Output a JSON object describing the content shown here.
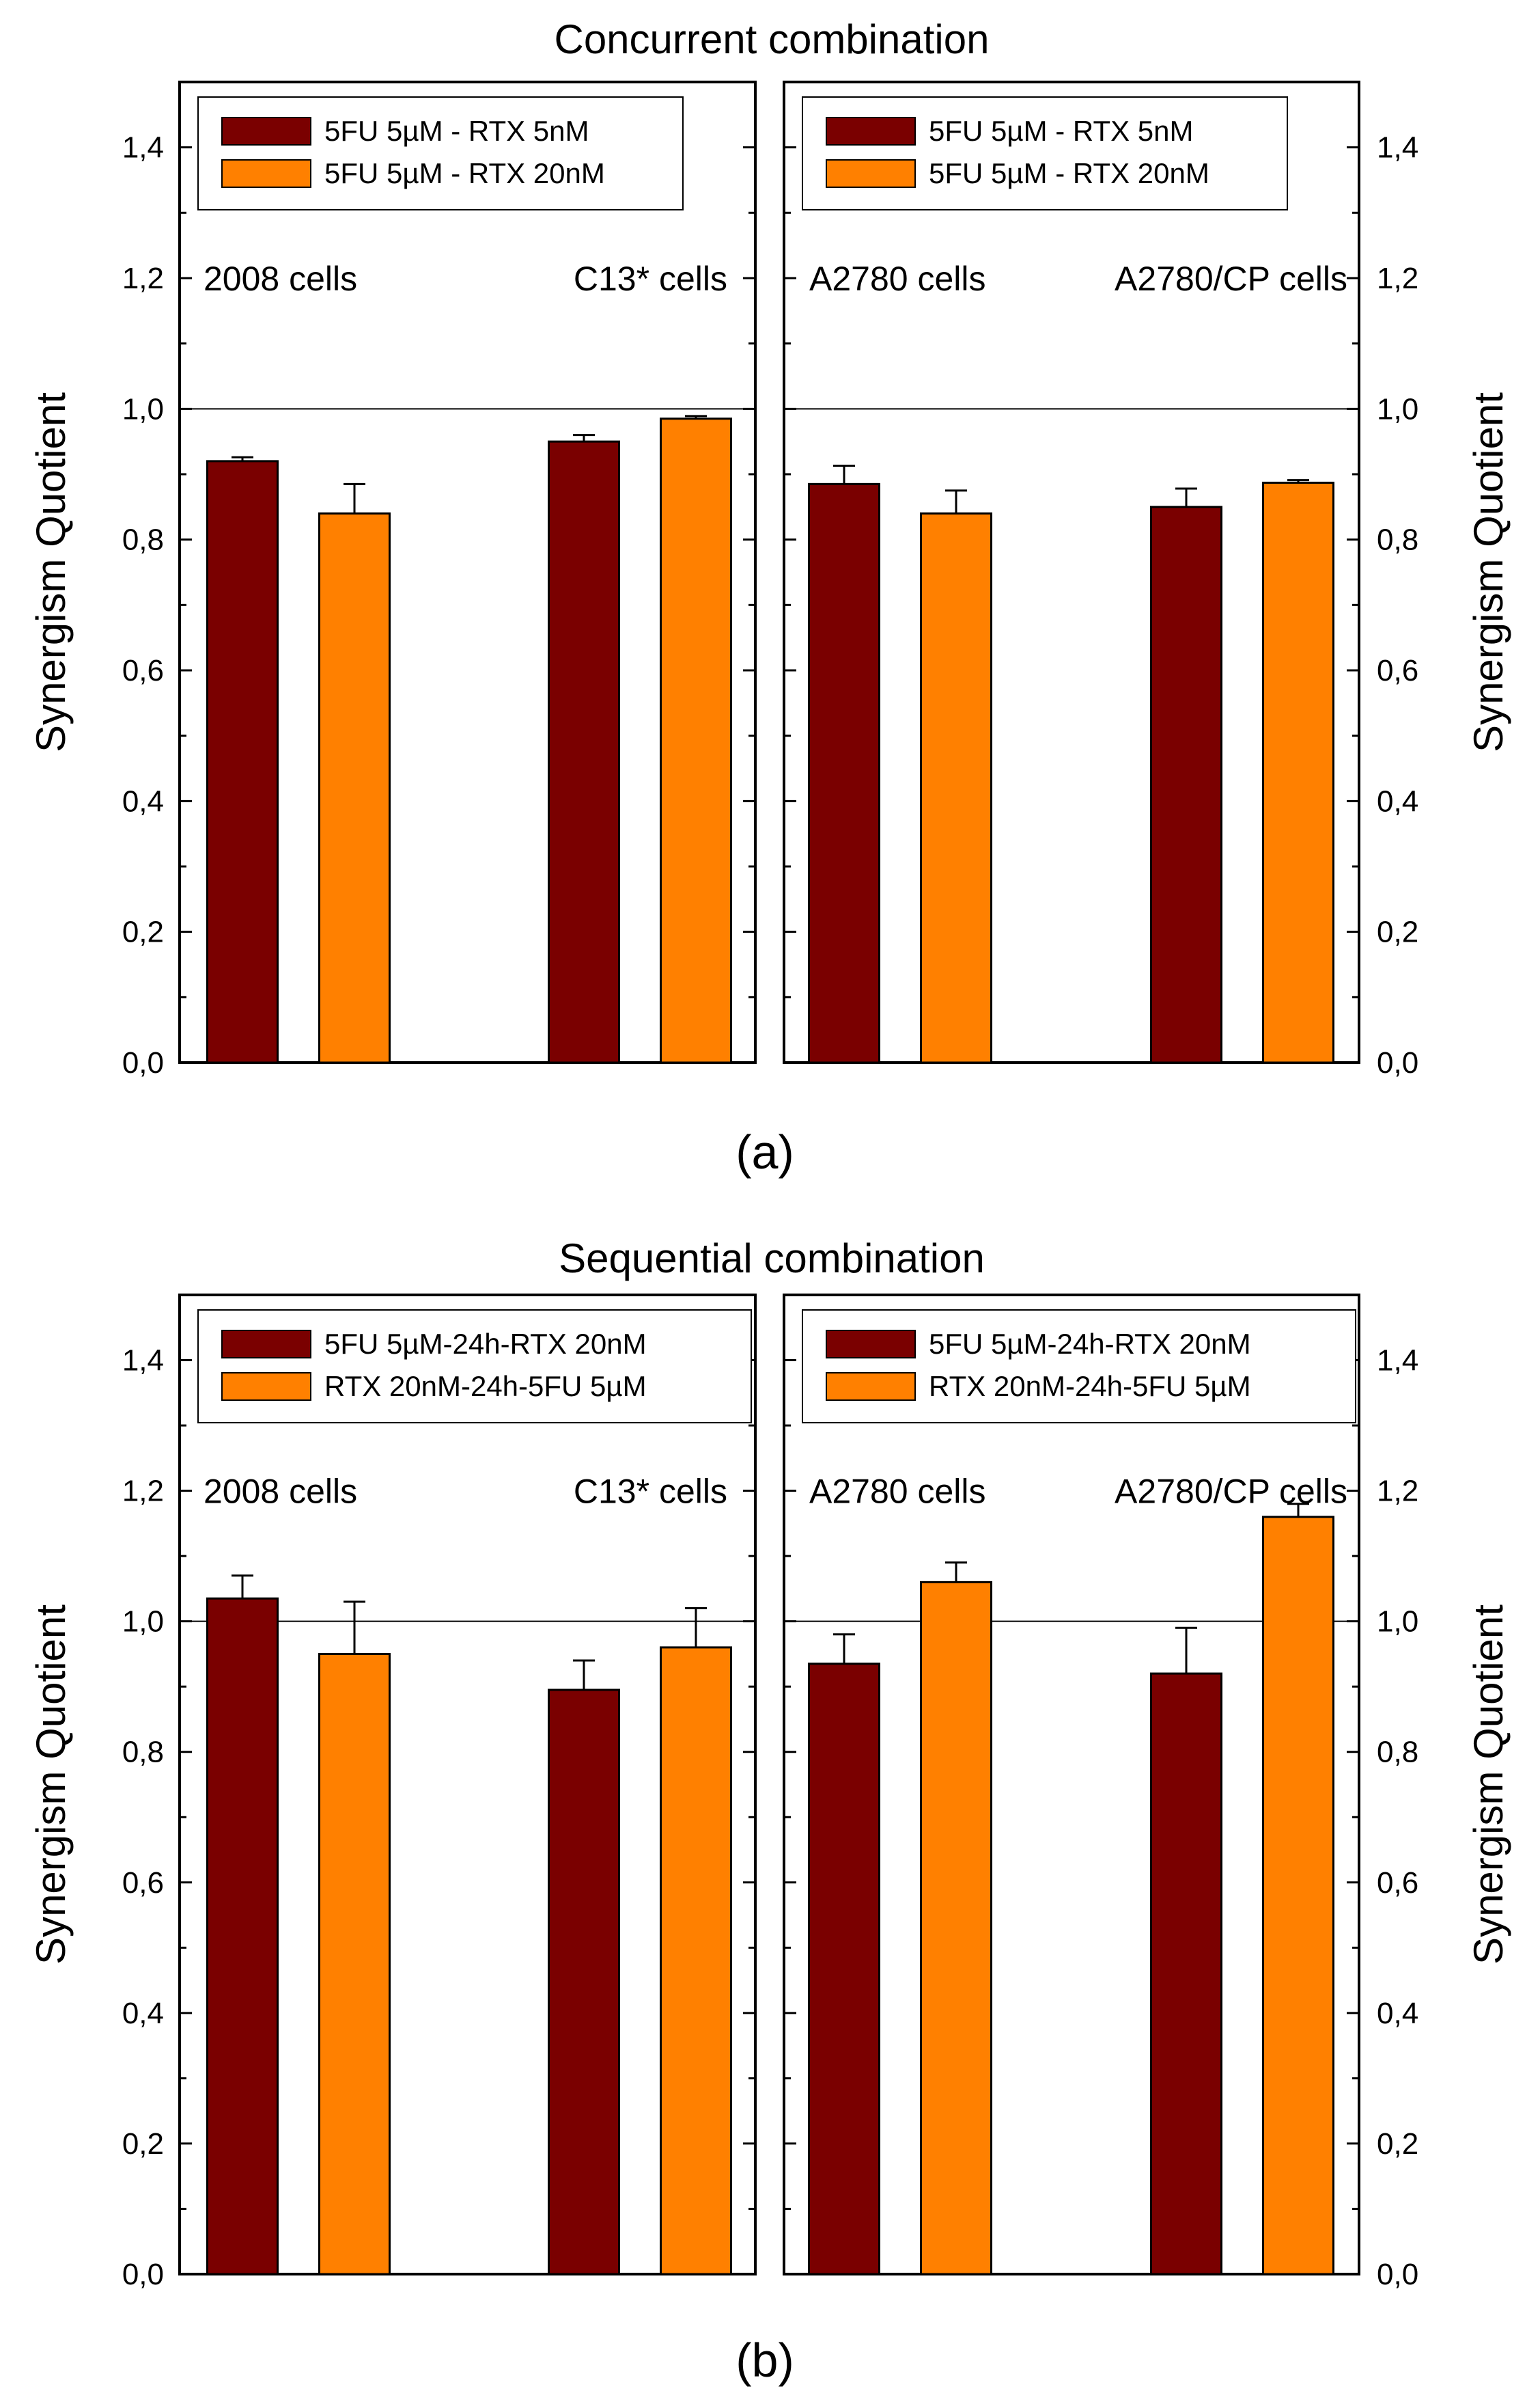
{
  "figure": {
    "sublabel_a": "(a)",
    "sublabel_b": "(b)"
  },
  "chart_data": [
    {
      "type": "bar",
      "title": "Concurrent combination",
      "ylabel": "Synergism Quotient",
      "ylim": [
        0,
        1.5
      ],
      "yticks": [
        "0,0",
        "0,2",
        "0,4",
        "0,6",
        "0,8",
        "1,0",
        "1,2",
        "1,4"
      ],
      "reference_line": 1.0,
      "legend_placement": "top-left of each half",
      "colors": {
        "series1": "#7a0000",
        "series2": "#ff8000"
      },
      "series_names": [
        "5FU 5µM - RTX 5nM",
        "5FU 5µM - RTX 20nM"
      ],
      "cells": [
        {
          "label": "2008 cells",
          "values": [
            0.92,
            0.84
          ],
          "errors": [
            0.006,
            0.045
          ]
        },
        {
          "label": "C13* cells",
          "values": [
            0.95,
            0.985
          ],
          "errors": [
            0.01,
            0.004
          ]
        },
        {
          "label": "A2780 cells",
          "values": [
            0.885,
            0.84
          ],
          "errors": [
            0.028,
            0.035
          ]
        },
        {
          "label": "A2780/CP cells",
          "values": [
            0.85,
            0.887
          ],
          "errors": [
            0.028,
            0.004
          ]
        }
      ]
    },
    {
      "type": "bar",
      "title": "Sequential combination",
      "ylabel": "Synergism Quotient",
      "ylim": [
        0,
        1.5
      ],
      "yticks": [
        "0,0",
        "0,2",
        "0,4",
        "0,6",
        "0,8",
        "1,0",
        "1,2",
        "1,4"
      ],
      "reference_line": 1.0,
      "legend_placement": "top-left of each half",
      "colors": {
        "series1": "#7a0000",
        "series2": "#ff8000"
      },
      "series_names": [
        "5FU 5µM-24h-RTX 20nM",
        "RTX 20nM-24h-5FU 5µM"
      ],
      "cells": [
        {
          "label": "2008 cells",
          "values": [
            1.035,
            0.95
          ],
          "errors": [
            0.035,
            0.08
          ]
        },
        {
          "label": "C13* cells",
          "values": [
            0.895,
            0.96
          ],
          "errors": [
            0.045,
            0.06
          ]
        },
        {
          "label": "A2780 cells",
          "values": [
            0.935,
            1.06
          ],
          "errors": [
            0.045,
            0.03
          ]
        },
        {
          "label": "A2780/CP cells",
          "values": [
            0.92,
            1.16
          ],
          "errors": [
            0.07,
            0.02
          ]
        }
      ]
    }
  ]
}
